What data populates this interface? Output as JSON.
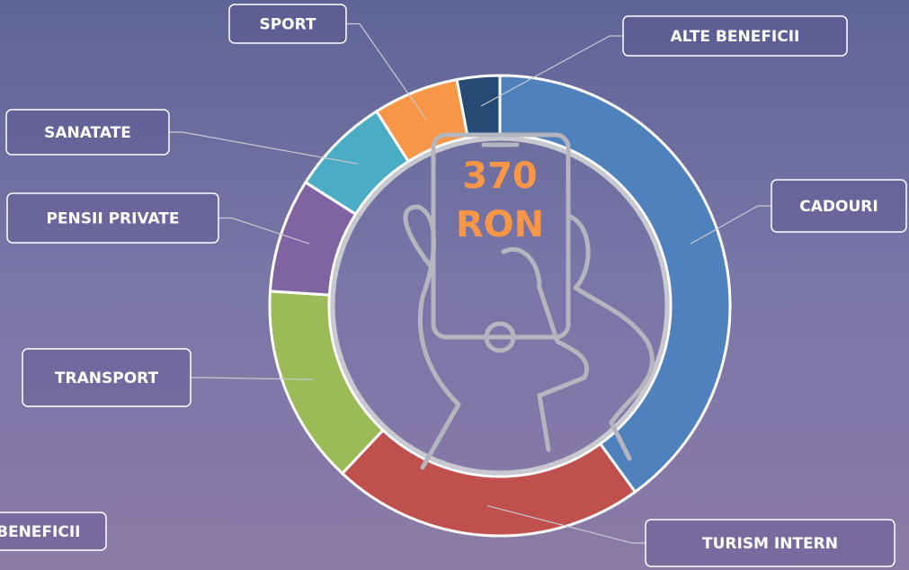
{
  "chart_data": {
    "type": "pie",
    "categories": [
      "CADOURI",
      "TURISM INTERN",
      "TRANSPORT",
      "PENSII PRIVATE",
      "SANATATE",
      "SPORT",
      "ALTE BENEFICII"
    ],
    "values": [
      40,
      22,
      14,
      8,
      7,
      6,
      3
    ],
    "colors": [
      "#4f81bd",
      "#c0504d",
      "#9bbb59",
      "#8064a2",
      "#4bacc6",
      "#f79646",
      "#264a73"
    ],
    "center_value": "370",
    "center_unit": "RON",
    "extra_label": "BENEFICII"
  }
}
